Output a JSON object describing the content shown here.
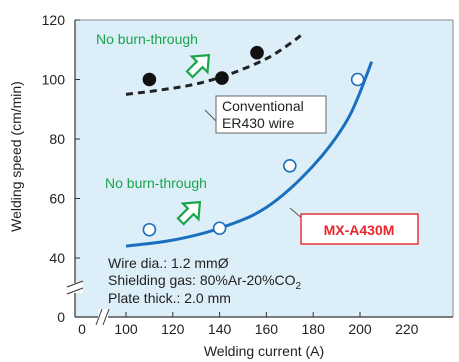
{
  "chart_data": {
    "type": "line",
    "title": "",
    "xlabel": "Welding current (A)",
    "ylabel": "Welding speed (cm/min)",
    "xlim": [
      80,
      220
    ],
    "ylim": [
      0,
      120
    ],
    "x_axis_break": true,
    "y_axis_break": true,
    "x_ticks": [
      "0",
      "100",
      "120",
      "140",
      "160",
      "180",
      "200",
      "220"
    ],
    "y_ticks": [
      "0",
      "40",
      "60",
      "80",
      "100",
      "120"
    ],
    "grid": false,
    "legend": "none",
    "series": [
      {
        "name": "Conventional ER430 wire",
        "marker": "filled-circle",
        "line_style": "dashed",
        "color": "#222222",
        "points": [
          [
            110,
            100
          ],
          [
            141,
            100.5
          ],
          [
            156,
            109
          ]
        ],
        "curve": [
          [
            100,
            95
          ],
          [
            115,
            96.5
          ],
          [
            130,
            98.5
          ],
          [
            145,
            102
          ],
          [
            160,
            107
          ],
          [
            170,
            112
          ],
          [
            175,
            115
          ]
        ]
      },
      {
        "name": "MX-A430M",
        "marker": "open-circle",
        "line_style": "solid",
        "color": "#1a6fbe",
        "points": [
          [
            110,
            49.5
          ],
          [
            140,
            50
          ],
          [
            170,
            71
          ],
          [
            199,
            100
          ]
        ],
        "curve": [
          [
            100,
            44
          ],
          [
            120,
            46
          ],
          [
            140,
            50
          ],
          [
            160,
            57
          ],
          [
            180,
            71
          ],
          [
            195,
            87
          ],
          [
            205,
            106
          ]
        ]
      }
    ],
    "annotations": {
      "upper_region": "No burn-through",
      "lower_region": "No burn-through",
      "conventional_label_line1": "Conventional",
      "conventional_label_line2": "ER430 wire",
      "mx_label": "MX-A430M",
      "conditions": [
        "Wire dia.: 1.2 mmØ",
        "Shielding gas: 80%Ar-20%CO",
        "Plate thick.: 2.0 mm"
      ],
      "co2_subscript": "2"
    },
    "colors": {
      "plot_background": "#dceef8",
      "green_text": "#1aa54a",
      "red_box": "#e8262c",
      "blue_curve": "#1a6fbe"
    }
  }
}
